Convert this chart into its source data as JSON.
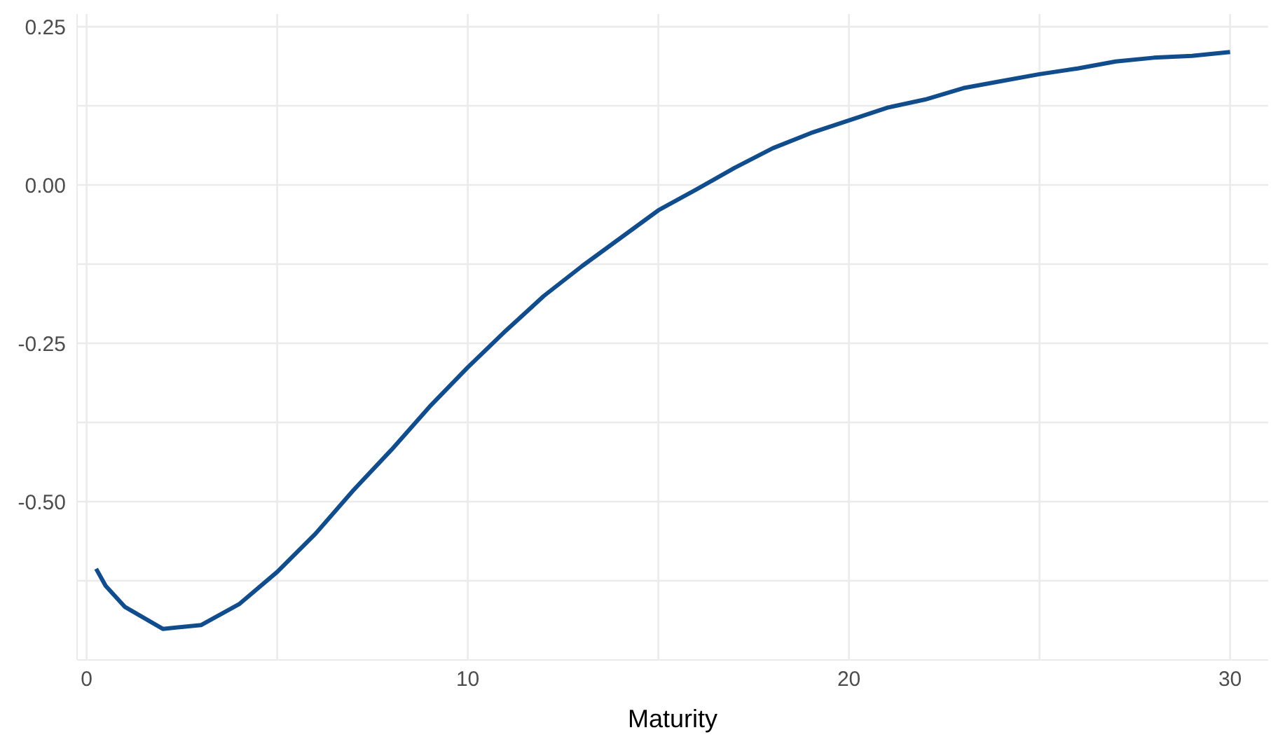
{
  "chart_data": {
    "type": "line",
    "xlabel": "Maturity",
    "x": [
      0.25,
      0.5,
      1,
      2,
      3,
      4,
      5,
      6,
      7,
      8,
      9,
      10,
      11,
      12,
      13,
      14,
      15,
      16,
      17,
      18,
      19,
      20,
      21,
      22,
      23,
      24,
      25,
      26,
      27,
      28,
      29,
      30
    ],
    "series": [
      {
        "color": "#114d8c",
        "values": [
          -0.606,
          -0.633,
          -0.666,
          -0.701,
          -0.695,
          -0.662,
          -0.611,
          -0.551,
          -0.482,
          -0.418,
          -0.35,
          -0.288,
          -0.23,
          -0.175,
          -0.128,
          -0.084,
          -0.04,
          -0.007,
          0.027,
          0.058,
          0.082,
          0.102,
          0.122,
          0.135,
          0.153,
          0.164,
          0.175,
          0.184,
          0.195,
          0.201,
          0.204,
          0.21
        ]
      }
    ],
    "xlim": [
      -0.25,
      31
    ],
    "xticks": [
      0,
      {
        "value": 5,
        "label": null
      },
      10,
      {
        "value": 15,
        "label": null
      },
      20,
      {
        "value": 25,
        "label": null
      },
      30
    ],
    "ylim": [
      -0.75,
      0.27
    ],
    "yticks": [
      {
        "value": -0.625,
        "label": null
      },
      {
        "value": -0.5,
        "label": "-0.50"
      },
      {
        "value": -0.375,
        "label": null
      },
      {
        "value": -0.25,
        "label": "-0.25"
      },
      {
        "value": -0.125,
        "label": null
      },
      {
        "value": 0,
        "label": "0.00"
      },
      {
        "value": 0.125,
        "label": null
      },
      {
        "value": 0.25,
        "label": "0.25"
      }
    ],
    "grid": true,
    "legend": false,
    "marker": "none",
    "line_style": "solid"
  }
}
